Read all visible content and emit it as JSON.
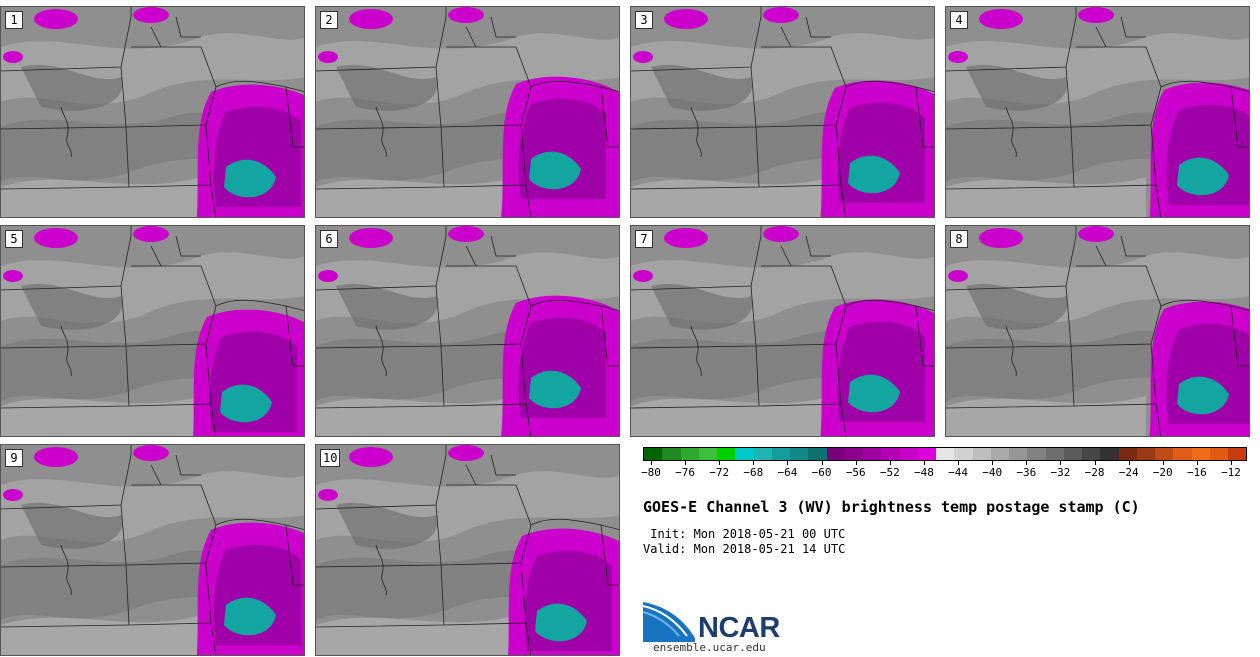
{
  "stamps": [
    {
      "label": "1",
      "variant": 0
    },
    {
      "label": "2",
      "variant": 1
    },
    {
      "label": "3",
      "variant": 2
    },
    {
      "label": "4",
      "variant": 3
    },
    {
      "label": "5",
      "variant": 4
    },
    {
      "label": "6",
      "variant": 1
    },
    {
      "label": "7",
      "variant": 2
    },
    {
      "label": "8",
      "variant": 3
    },
    {
      "label": "9",
      "variant": 0
    },
    {
      "label": "10",
      "variant": 4
    }
  ],
  "colorbar": {
    "colors": [
      "#006400",
      "#1f8a1f",
      "#2ea82e",
      "#3cc03c",
      "#00d000",
      "#00c8c8",
      "#20b4b4",
      "#169c9c",
      "#108888",
      "#0a7070",
      "#7a007a",
      "#8c008c",
      "#a000a0",
      "#b400b4",
      "#c800c8",
      "#dc00dc",
      "#e6e6e6",
      "#d2d2d2",
      "#bebebe",
      "#aaaaaa",
      "#969696",
      "#828282",
      "#6e6e6e",
      "#5a5a5a",
      "#464646",
      "#323232",
      "#7a2a10",
      "#9a3a14",
      "#c04a16",
      "#e05a18",
      "#f06a1a",
      "#e05a14",
      "#c83a10"
    ],
    "ticks": [
      "−80",
      "−76",
      "−72",
      "−68",
      "−64",
      "−60",
      "−56",
      "−52",
      "−48",
      "−44",
      "−40",
      "−36",
      "−32",
      "−28",
      "−24",
      "−20",
      "−16",
      "−12"
    ],
    "min": -80,
    "max": -10
  },
  "title": "GOES-E Channel 3 (WV) brightness temp postage stamp (C)",
  "init_line": " Init: Mon 2018-05-21 00 UTC",
  "valid_line": "Valid: Mon 2018-05-21 14 UTC",
  "logo_text": "NCAR",
  "site": "ensemble.ucar.edu"
}
